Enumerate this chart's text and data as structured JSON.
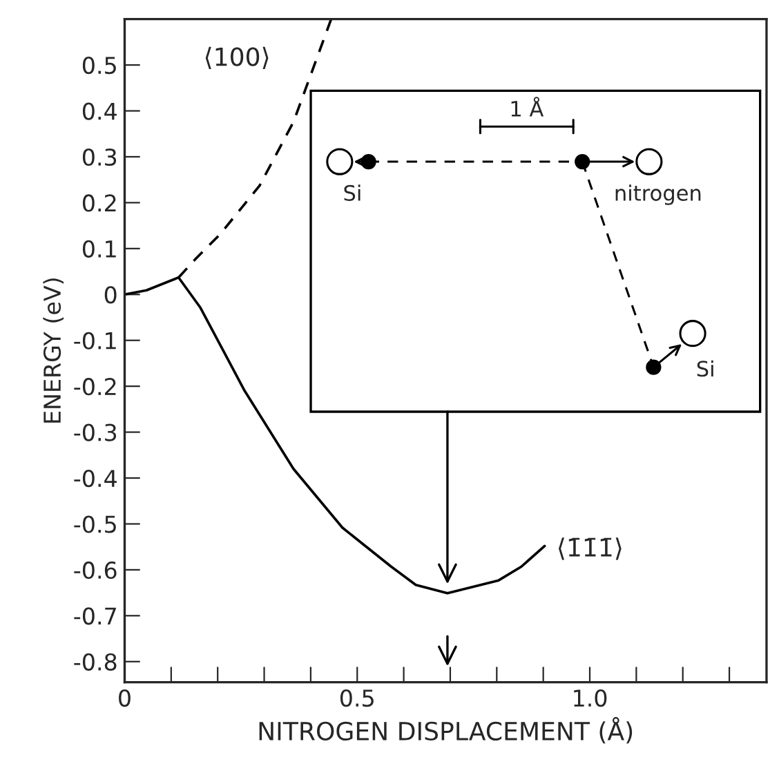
{
  "chart_data": {
    "type": "line",
    "xlabel": "NITROGEN DISPLACEMENT (Å)",
    "ylabel": "ENERGY (eV)",
    "xlim": [
      0,
      1.38
    ],
    "ylim": [
      -0.845,
      0.6
    ],
    "xticks": [
      0,
      {
        "value": 0.1,
        "label": null
      },
      {
        "value": 0.2,
        "label": null
      },
      {
        "value": 0.3,
        "label": null
      },
      {
        "value": 0.4,
        "label": null
      },
      0.5,
      {
        "value": 0.6,
        "label": null
      },
      {
        "value": 0.7,
        "label": null
      },
      {
        "value": 0.8,
        "label": null
      },
      {
        "value": 0.9,
        "label": null
      },
      {
        "value": 1.0,
        "label": "1.0"
      },
      {
        "value": 1.1,
        "label": null
      },
      {
        "value": 1.2,
        "label": null
      },
      {
        "value": 1.3,
        "label": null
      }
    ],
    "yticks": [
      0.5,
      0.4,
      0.3,
      0.2,
      0.1,
      0,
      -0.1,
      -0.2,
      -0.3,
      -0.4,
      -0.5,
      -0.6,
      -0.7,
      -0.8
    ],
    "grid": false,
    "marker": "none",
    "series": [
      {
        "color": "#000000",
        "line_style": "dashed",
        "x": [
          0.116,
          0.153,
          0.205,
          0.29,
          0.363,
          0.444
        ],
        "values": [
          0.037,
          0.078,
          0.131,
          0.237,
          0.376,
          0.6
        ]
      },
      {
        "color": "#000000",
        "line_style": "solid",
        "x": [
          0,
          0.047,
          0.116,
          0.163,
          0.258,
          0.363,
          0.468,
          0.573,
          0.626,
          0.694,
          0.804,
          0.853,
          0.903
        ],
        "values": [
          0,
          0.009,
          0.037,
          -0.029,
          -0.21,
          -0.38,
          -0.508,
          -0.593,
          -0.633,
          -0.651,
          -0.623,
          -0.593,
          -0.548
        ]
      }
    ],
    "annotations": [
      "⟨100⟩",
      "⟨1̄1̄1̄⟩",
      "1 Å",
      "Si",
      "nitrogen",
      "Si"
    ]
  }
}
